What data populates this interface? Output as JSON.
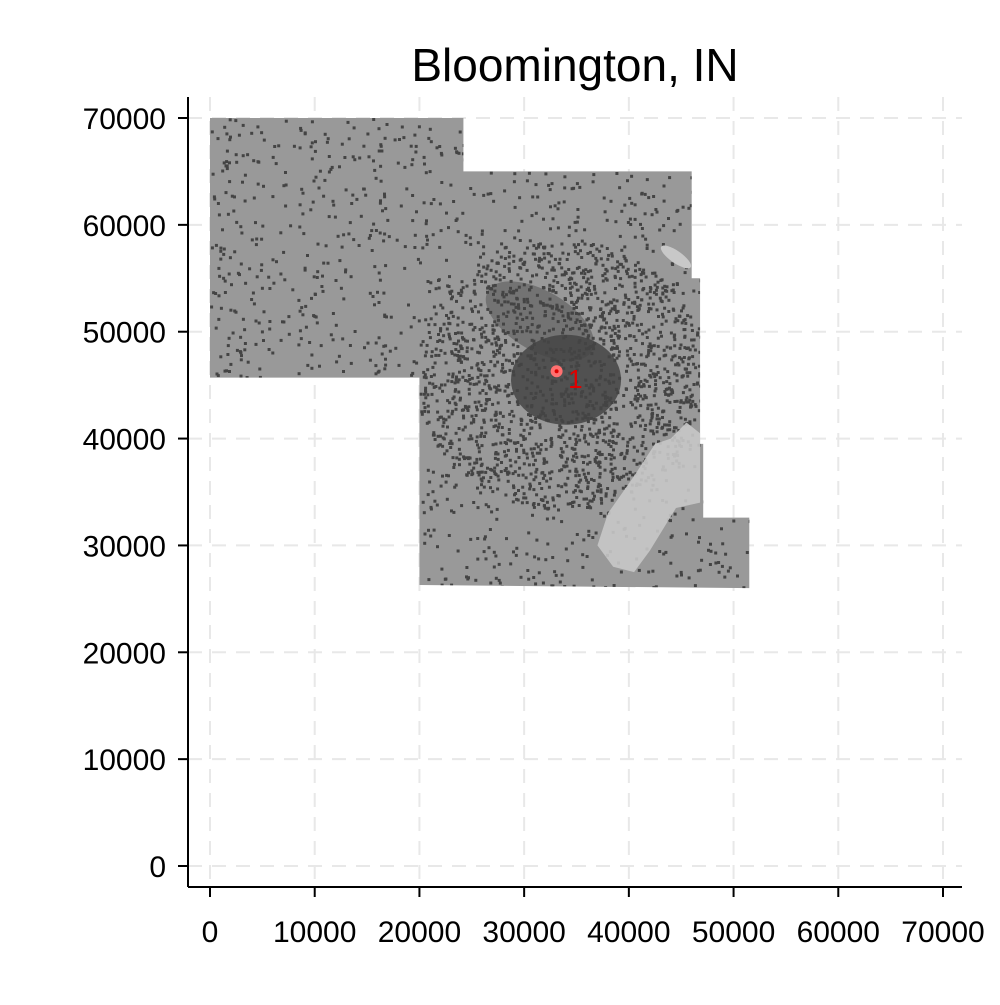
{
  "chart_data": {
    "type": "map",
    "title": "Bloomington, IN",
    "xlabel": "",
    "ylabel": "",
    "xlim": [
      -2000,
      72000
    ],
    "ylim": [
      -2000,
      72000
    ],
    "x_ticks": [
      0,
      10000,
      20000,
      30000,
      40000,
      50000,
      60000,
      70000
    ],
    "y_ticks": [
      0,
      10000,
      20000,
      30000,
      40000,
      50000,
      60000,
      70000
    ],
    "x_tick_labels": [
      "0",
      "10000",
      "20000",
      "30000",
      "40000",
      "50000",
      "60000",
      "70000"
    ],
    "y_tick_labels": [
      "0",
      "10000",
      "20000",
      "30000",
      "40000",
      "50000",
      "60000",
      "70000"
    ],
    "grid": true,
    "region_outline": [
      [
        0,
        70000
      ],
      [
        24200,
        70000
      ],
      [
        24200,
        65000
      ],
      [
        46000,
        65000
      ],
      [
        46000,
        55000
      ],
      [
        46800,
        55000
      ],
      [
        46800,
        39500
      ],
      [
        47100,
        39500
      ],
      [
        47100,
        32600
      ],
      [
        51500,
        32600
      ],
      [
        51500,
        26000
      ],
      [
        20000,
        26300
      ],
      [
        20000,
        45700
      ],
      [
        0,
        45700
      ]
    ],
    "lake": [
      [
        38000,
        33000
      ],
      [
        40500,
        36500
      ],
      [
        42500,
        39500
      ],
      [
        44000,
        40000
      ],
      [
        45500,
        41500
      ],
      [
        46800,
        40500
      ],
      [
        46800,
        34000
      ],
      [
        44500,
        33500
      ],
      [
        42000,
        29500
      ],
      [
        40500,
        27500
      ],
      [
        38500,
        28000
      ],
      [
        37000,
        30000
      ]
    ],
    "city_center": [
      33500,
      46000
    ],
    "annotations": [
      {
        "label": "1",
        "x": 34200,
        "y": 45500
      }
    ],
    "colors": {
      "region": "#999999",
      "density": "#444444",
      "lake": "#c8c8c8",
      "marker": "#ff7070",
      "label": "#e00000",
      "grid": "#e8e8e8",
      "axis": "#000000"
    }
  }
}
